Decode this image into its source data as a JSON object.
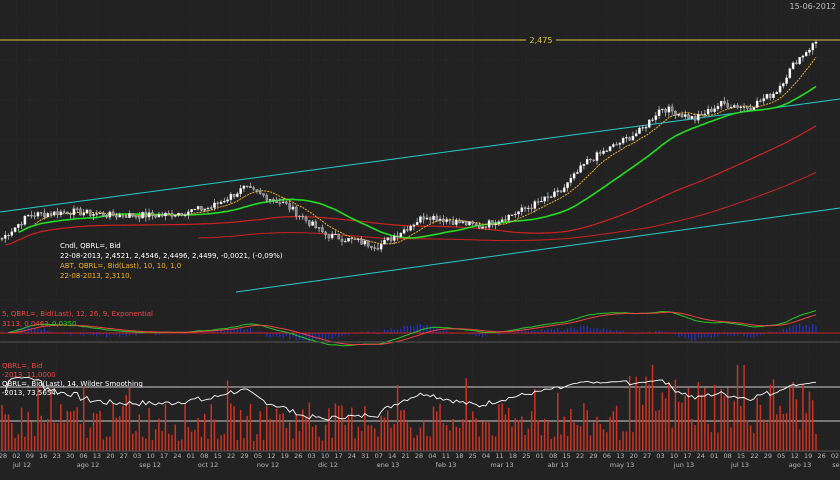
{
  "header": {
    "date_label": "15-06-2012"
  },
  "colors": {
    "background": "#222222",
    "grid": "#3a3a3a",
    "candle_up": "#ffffff",
    "candle_down": "#bbbbbb",
    "sma_short": "#f0b030",
    "sma_mid": "#22dd22",
    "sma_long": "#cc2222",
    "channel": "#22cccc",
    "hline": "#d8c840",
    "macd_line": "#22cc22",
    "macd_signal": "#ee4444",
    "macd_hist": "#2233cc",
    "rsi_line": "#ffffff",
    "volume": "#cc3322"
  },
  "overlay": {
    "line1": "Cndl, QBRL=, Bid",
    "line2": "22-08-2013, 2,4521, 2,4546, 2,4496, 2,4499, -0,0021, (-0,09%)",
    "line3": "ABT, QBRL=, Bid(Last), 10, 10, 1,0",
    "line4": "22-08-2013, 2,3110,",
    "macd_label": "5, QBRL=, Bid(Last), 12, 26, 9, Exponential",
    "macd_values_a": "3113, 0,0463,",
    "macd_values_b": "0,0350",
    "vol_label_a": "QBRL=, Bid",
    "vol_label_b": "-2013, 11,0000",
    "rsi_label_a": "QBRL=, Bid(Last), 14, Wilder Smoothing",
    "rsi_label_b": "-2013, 73,5654"
  },
  "chart_data": {
    "type": "candlestick",
    "title": "",
    "hline": {
      "value": 2.475,
      "label": "2,475"
    },
    "date_ticks": [
      "28",
      "02",
      "09",
      "16",
      "23",
      "30",
      "06",
      "13",
      "20",
      "27",
      "03",
      "10",
      "17",
      "24",
      "01",
      "08",
      "15",
      "22",
      "29",
      "05",
      "12",
      "19",
      "26",
      "03",
      "10",
      "17",
      "24",
      "31",
      "07",
      "14",
      "21",
      "28",
      "04",
      "11",
      "18",
      "25",
      "04",
      "11",
      "18",
      "25",
      "01",
      "08",
      "15",
      "22",
      "29",
      "06",
      "13",
      "20",
      "27",
      "03",
      "10",
      "17",
      "24",
      "01",
      "08",
      "15",
      "22",
      "29",
      "05",
      "12",
      "19",
      "26",
      "02"
    ],
    "month_labels": [
      "jul 12",
      "ago 12",
      "sep 12",
      "oct 12",
      "nov 12",
      "dic 12",
      "ene 13",
      "feb 13",
      "mar 13",
      "abr 13",
      "may 13",
      "jun 13",
      "jul 13",
      "ago 13",
      "se"
    ],
    "price_path": [
      [
        0,
        1.96
      ],
      [
        8,
        2.02
      ],
      [
        20,
        2.03
      ],
      [
        32,
        2.02
      ],
      [
        48,
        2.02
      ],
      [
        62,
        2.04
      ],
      [
        72,
        2.09
      ],
      [
        78,
        2.07
      ],
      [
        84,
        2.05
      ],
      [
        96,
        1.97
      ],
      [
        112,
        1.94
      ],
      [
        126,
        2.02
      ],
      [
        142,
        1.99
      ],
      [
        154,
        2.03
      ],
      [
        166,
        2.08
      ],
      [
        174,
        2.16
      ],
      [
        182,
        2.2
      ],
      [
        190,
        2.24
      ],
      [
        196,
        2.3
      ],
      [
        206,
        2.27
      ],
      [
        214,
        2.31
      ],
      [
        222,
        2.3
      ],
      [
        230,
        2.34
      ],
      [
        236,
        2.42
      ],
      [
        242,
        2.47
      ]
    ],
    "n_candles": 250
  }
}
